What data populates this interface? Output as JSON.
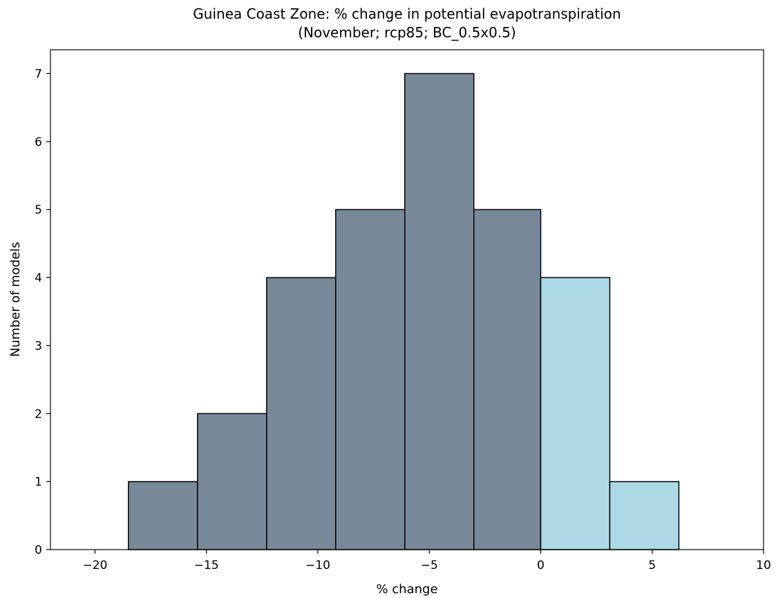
{
  "chart_data": {
    "type": "bar",
    "title": "Guinea Coast Zone: % change in potential evapotranspiration",
    "subtitle": "(November; rcp85; BC_0.5x0.5)",
    "xlabel": "% change",
    "ylabel": "Number of models",
    "xlim": [
      -22,
      10
    ],
    "ylim": [
      0,
      7.35
    ],
    "xticks": [
      -20,
      -15,
      -10,
      -5,
      0,
      5,
      10
    ],
    "xtick_labels": [
      "−20",
      "−15",
      "−10",
      "−5",
      "0",
      "5",
      "10"
    ],
    "yticks": [
      0,
      1,
      2,
      3,
      4,
      5,
      6,
      7
    ],
    "ytick_labels": [
      "0",
      "1",
      "2",
      "3",
      "4",
      "5",
      "6",
      "7"
    ],
    "bins": [
      {
        "x0": -18.5,
        "x1": -15.4,
        "count": 1
      },
      {
        "x0": -15.4,
        "x1": -12.3,
        "count": 2
      },
      {
        "x0": -12.3,
        "x1": -9.2,
        "count": 4
      },
      {
        "x0": -9.2,
        "x1": -6.1,
        "count": 5
      },
      {
        "x0": -6.1,
        "x1": -3.0,
        "count": 7
      },
      {
        "x0": -3.0,
        "x1": 0.0,
        "count": 5
      },
      {
        "x0": 0.0,
        "x1": 3.1,
        "count": 4
      },
      {
        "x0": 3.1,
        "x1": 6.2,
        "count": 1
      }
    ],
    "colors": {
      "negative": "#778899",
      "positive": "#add8e6",
      "edge": "#000000"
    },
    "grid": false,
    "legend": "none"
  }
}
